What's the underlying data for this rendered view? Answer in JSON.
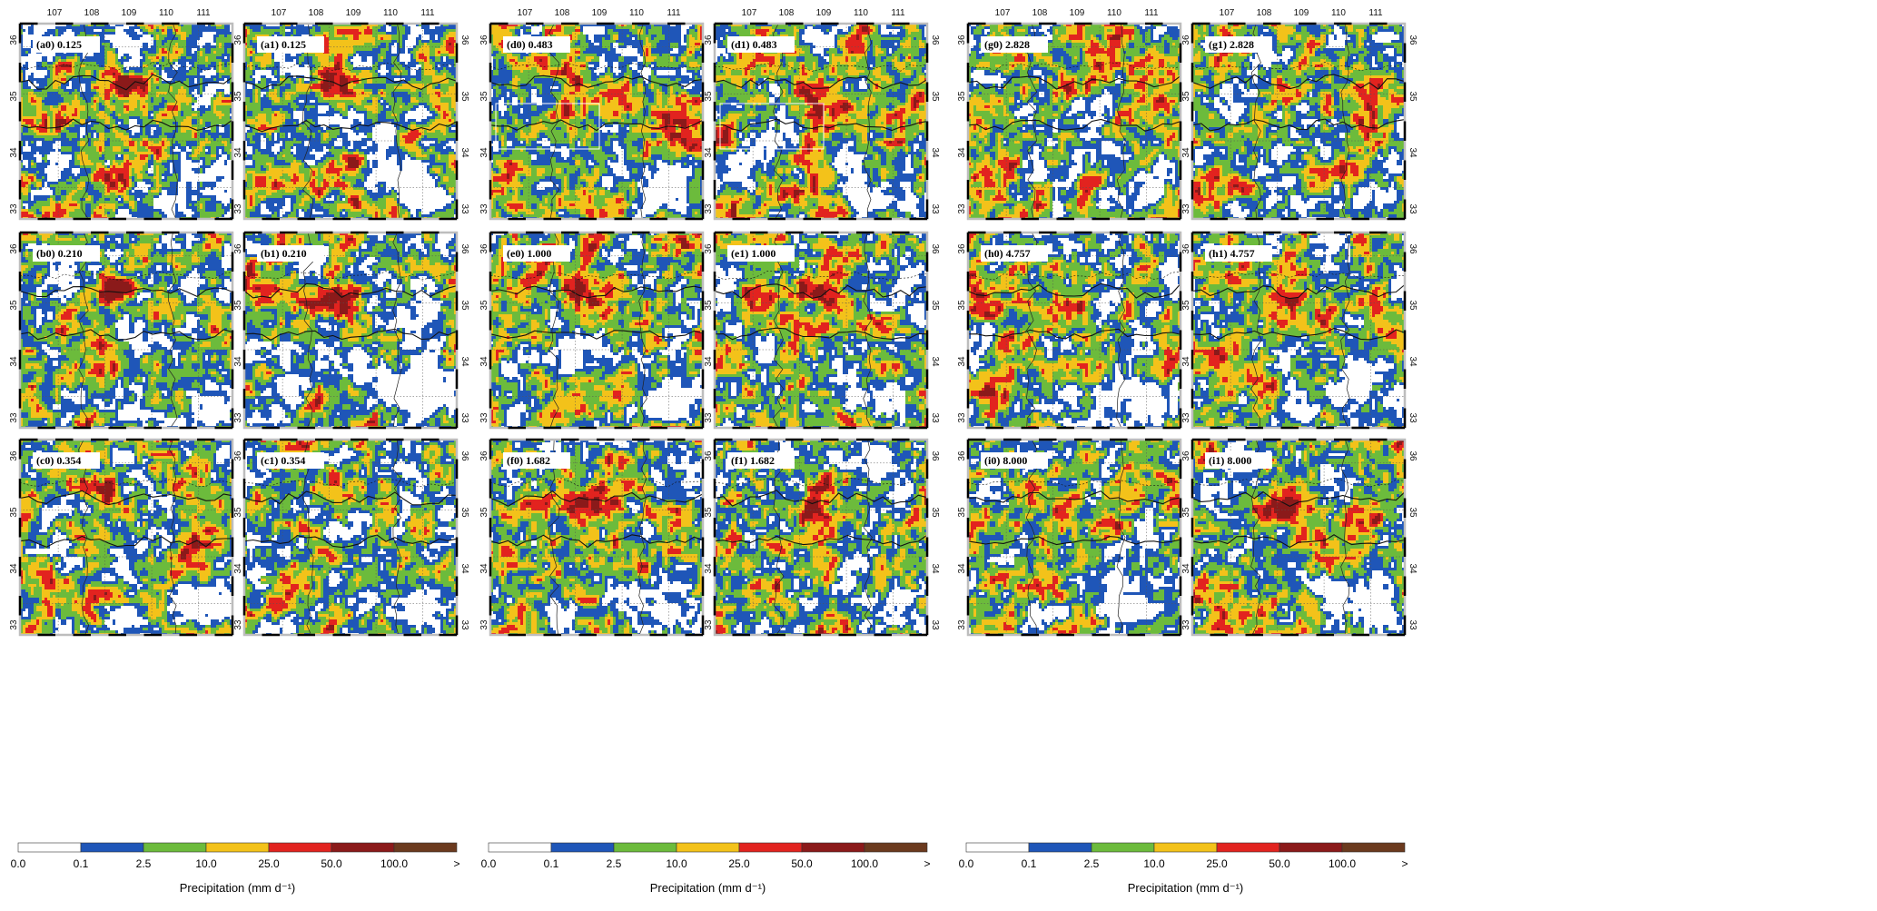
{
  "lon_ticks": [
    "107",
    "108",
    "109",
    "110",
    "111"
  ],
  "lat_ticks": [
    "36",
    "35",
    "34",
    "33"
  ],
  "groups": [
    {
      "panels": [
        [
          {
            "label": "(a0) 0.125",
            "seed": 11
          },
          {
            "label": "(a1) 0.125",
            "seed": 12
          }
        ],
        [
          {
            "label": "(b0) 0.210",
            "seed": 21
          },
          {
            "label": "(b1) 0.210",
            "seed": 22
          }
        ],
        [
          {
            "label": "(c0) 0.354",
            "seed": 31
          },
          {
            "label": "(c1) 0.354",
            "seed": 32
          }
        ]
      ]
    },
    {
      "panels": [
        [
          {
            "label": "(d0) 0.483",
            "seed": 41,
            "box": true
          },
          {
            "label": "(d1) 0.483",
            "seed": 42,
            "box": true
          }
        ],
        [
          {
            "label": "(e0) 1.000",
            "seed": 51
          },
          {
            "label": "(e1) 1.000",
            "seed": 52
          }
        ],
        [
          {
            "label": "(f0) 1.682",
            "seed": 61
          },
          {
            "label": "(f1) 1.682",
            "seed": 62
          }
        ]
      ]
    },
    {
      "panels": [
        [
          {
            "label": "(g0) 2.828",
            "seed": 71
          },
          {
            "label": "(g1) 2.828",
            "seed": 72
          }
        ],
        [
          {
            "label": "(h0) 4.757",
            "seed": 81
          },
          {
            "label": "(h1) 4.757",
            "seed": 82
          }
        ],
        [
          {
            "label": "(i0) 8.000",
            "seed": 91
          },
          {
            "label": "(i1) 8.000",
            "seed": 92
          }
        ]
      ]
    }
  ],
  "legend": {
    "title": "Precipitation (mm d⁻¹)",
    "labels": [
      "0.0",
      "0.1",
      "2.5",
      "10.0",
      "25.0",
      "50.0",
      "100.0",
      ">"
    ],
    "colors": [
      "#ffffff",
      "#1f56b8",
      "#6cbb3c",
      "#f3c21a",
      "#e2231f",
      "#8b1a1a",
      "#6b3a1e"
    ]
  }
}
